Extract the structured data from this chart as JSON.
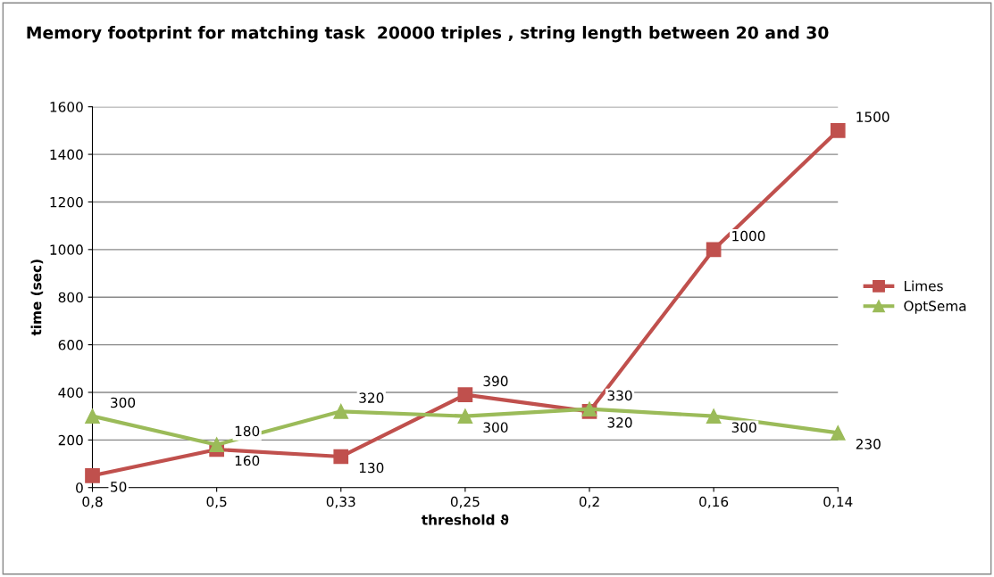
{
  "chart_data": {
    "type": "line",
    "title": "Memory footprint for matching task  20000 triples , string length between 20 and 30",
    "xlabel": "threshold ϑ",
    "ylabel": "time (sec)",
    "categories": [
      "0,8",
      "0,5",
      "0,33",
      "0,25",
      "0,2",
      "0,16",
      "0,14"
    ],
    "series": [
      {
        "name": "Limes",
        "color": "#c0504d",
        "marker": "square",
        "values": [
          50,
          160,
          130,
          390,
          320,
          1000,
          1500
        ]
      },
      {
        "name": "OptSema",
        "color": "#9bbb59",
        "marker": "triangle",
        "values": [
          300,
          180,
          320,
          300,
          330,
          300,
          230
        ]
      }
    ],
    "ylim": [
      0,
      1600
    ],
    "yticks": [
      0,
      200,
      400,
      600,
      800,
      1000,
      1200,
      1400,
      1600
    ],
    "grid": "y",
    "legend": "right",
    "data_labels": true,
    "line_style": "solid"
  }
}
